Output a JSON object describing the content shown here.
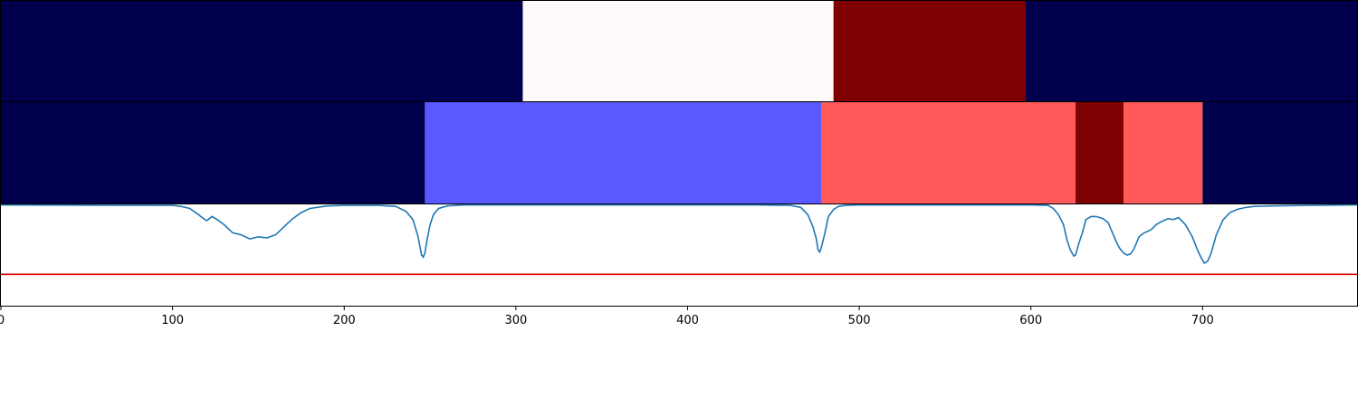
{
  "chart_data": [
    {
      "type": "heatmap",
      "xlim": [
        0,
        790
      ],
      "segments": [
        {
          "start": 0,
          "end": 304,
          "color": "#00004c"
        },
        {
          "start": 304,
          "end": 485,
          "color": "#fffafa"
        },
        {
          "start": 485,
          "end": 597,
          "color": "#7f0000"
        },
        {
          "start": 597,
          "end": 790,
          "color": "#00004c"
        }
      ]
    },
    {
      "type": "heatmap",
      "xlim": [
        0,
        790
      ],
      "segments": [
        {
          "start": 0,
          "end": 247,
          "color": "#00004c"
        },
        {
          "start": 247,
          "end": 478,
          "color": "#5959ff"
        },
        {
          "start": 478,
          "end": 626,
          "color": "#ff5959"
        },
        {
          "start": 626,
          "end": 654,
          "color": "#7f0000"
        },
        {
          "start": 654,
          "end": 700,
          "color": "#ff5959"
        },
        {
          "start": 700,
          "end": 790,
          "color": "#00004c"
        }
      ]
    },
    {
      "type": "line",
      "xlim": [
        0,
        790
      ],
      "ylim": [
        0,
        1
      ],
      "line_color": "#1f77b4",
      "threshold": {
        "y": 0.31,
        "color": "#e00000"
      },
      "x": [
        0,
        100,
        105,
        110,
        115,
        118,
        120,
        123,
        126,
        130,
        135,
        140,
        145,
        150,
        155,
        160,
        165,
        170,
        175,
        180,
        190,
        200,
        210,
        220,
        230,
        236,
        240,
        243,
        245,
        246,
        247,
        248,
        250,
        252,
        255,
        260,
        265,
        270,
        275,
        300,
        400,
        440,
        460,
        466,
        470,
        473,
        475,
        476,
        477,
        478,
        480,
        482,
        485,
        488,
        492,
        500,
        550,
        600,
        610,
        613,
        616,
        619,
        621,
        623,
        625,
        626,
        628,
        630,
        632,
        635,
        638,
        642,
        645,
        648,
        650,
        652,
        654,
        656,
        658,
        660,
        663,
        666,
        670,
        673,
        676,
        680,
        683,
        686,
        690,
        694,
        697,
        699,
        701,
        703,
        705,
        708,
        712,
        716,
        720,
        725,
        730,
        740,
        760,
        790
      ],
      "y": [
        0.995,
        0.99,
        0.98,
        0.96,
        0.9,
        0.86,
        0.84,
        0.88,
        0.85,
        0.8,
        0.72,
        0.7,
        0.66,
        0.68,
        0.67,
        0.7,
        0.78,
        0.86,
        0.92,
        0.96,
        0.985,
        0.99,
        0.99,
        0.99,
        0.98,
        0.93,
        0.85,
        0.68,
        0.5,
        0.48,
        0.52,
        0.63,
        0.8,
        0.9,
        0.96,
        0.985,
        0.99,
        0.995,
        0.995,
        0.995,
        0.995,
        0.995,
        0.99,
        0.97,
        0.9,
        0.78,
        0.66,
        0.55,
        0.53,
        0.58,
        0.72,
        0.88,
        0.95,
        0.98,
        0.99,
        0.995,
        0.995,
        0.995,
        0.99,
        0.96,
        0.9,
        0.8,
        0.65,
        0.55,
        0.49,
        0.5,
        0.62,
        0.72,
        0.85,
        0.88,
        0.88,
        0.86,
        0.82,
        0.7,
        0.62,
        0.56,
        0.52,
        0.5,
        0.51,
        0.56,
        0.68,
        0.72,
        0.75,
        0.8,
        0.83,
        0.86,
        0.85,
        0.87,
        0.8,
        0.68,
        0.55,
        0.48,
        0.42,
        0.44,
        0.52,
        0.7,
        0.85,
        0.92,
        0.95,
        0.97,
        0.98,
        0.985,
        0.99,
        0.995
      ]
    }
  ],
  "x_axis": {
    "ticks": [
      0,
      100,
      200,
      300,
      400,
      500,
      600,
      700
    ],
    "tick_labels": [
      "0",
      "100",
      "200",
      "300",
      "400",
      "500",
      "600",
      "700"
    ]
  }
}
